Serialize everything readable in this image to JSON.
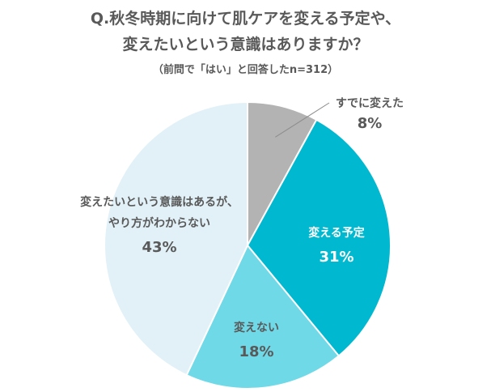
{
  "title_line1": "Q.秋冬時期に向けて肌ケアを変える予定や、",
  "title_line2": "変えたいという意識はありますか？",
  "subtitle": "（前問で「はい」と回答したn=312）",
  "chart_data": {
    "type": "pie",
    "title": "Q.秋冬時期に向けて肌ケアを変える予定や、変えたいという意識はありますか？",
    "subtitle": "（前問で「はい」と回答したn=312）",
    "slices": [
      {
        "label": "すでに変えた",
        "value": 8,
        "value_label": "8%",
        "color": "#b3b3b3"
      },
      {
        "label": "変える予定",
        "value": 31,
        "value_label": "31%",
        "color": "#00b8d0"
      },
      {
        "label": "変えない",
        "value": 18,
        "value_label": "18%",
        "color": "#6fd9e8"
      },
      {
        "label_lines": [
          "変えたいという意識はあるが、",
          "やり方がわからない"
        ],
        "value": 43,
        "value_label": "43%",
        "color": "#e1f1f7"
      }
    ]
  }
}
